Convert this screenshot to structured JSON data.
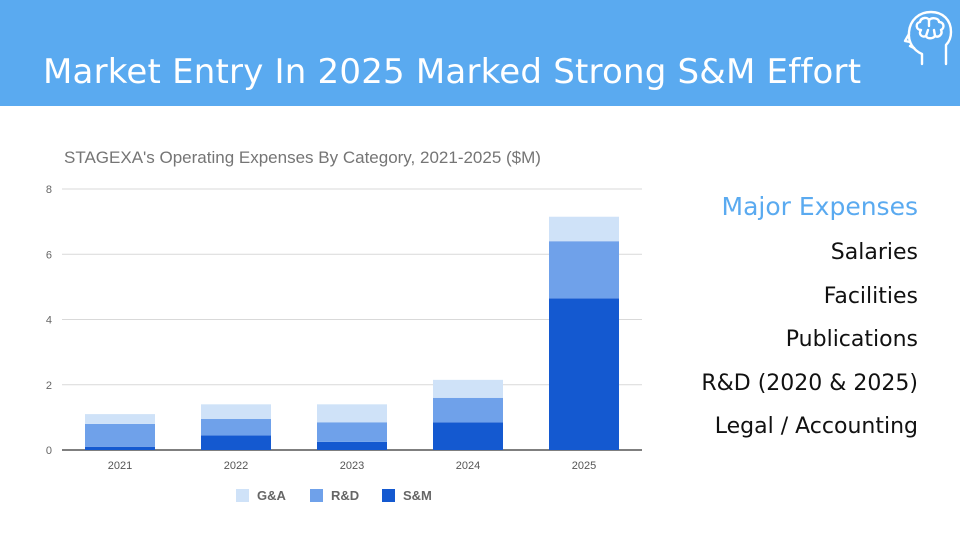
{
  "slide": {
    "title": "Market Entry In 2025 Marked Strong S&M Effort"
  },
  "icons": {
    "header_icon": "brain-head-icon"
  },
  "sidebar": {
    "heading": "Major Expenses",
    "items": [
      "Salaries",
      "Facilities",
      "Publications",
      "R&D (2020 & 2025)",
      "Legal / Accounting"
    ]
  },
  "colors": {
    "header": "#5aaaf0",
    "ga": "#cfe2f8",
    "rd": "#6fa1ea",
    "sm": "#1459d0"
  },
  "chart_data": {
    "type": "bar",
    "stacked": true,
    "title": "STAGEXA's Operating Expenses By Category, 2021-2025 ($M)",
    "categories": [
      "2021",
      "2022",
      "2023",
      "2024",
      "2025"
    ],
    "series": [
      {
        "name": "S&M",
        "values": [
          0.1,
          0.45,
          0.25,
          0.85,
          4.65
        ],
        "color": "#1459d0"
      },
      {
        "name": "R&D",
        "values": [
          0.7,
          0.5,
          0.6,
          0.75,
          1.75
        ],
        "color": "#6fa1ea"
      },
      {
        "name": "G&A",
        "values": [
          0.3,
          0.45,
          0.55,
          0.55,
          0.75
        ],
        "color": "#cfe2f8"
      }
    ],
    "legend_order": [
      "G&A",
      "R&D",
      "S&M"
    ],
    "yticks": [
      0,
      2,
      4,
      6,
      8
    ],
    "ylim": [
      0,
      8
    ],
    "grid": true,
    "legend": "bottom"
  }
}
